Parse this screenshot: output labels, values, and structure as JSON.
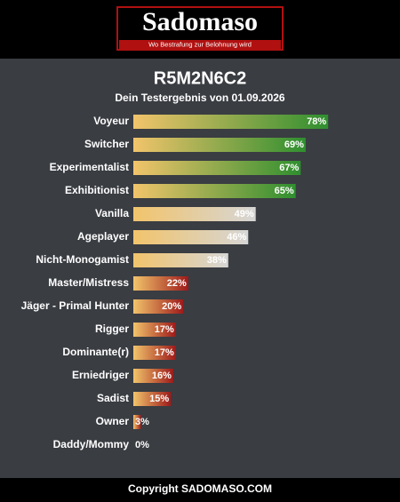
{
  "header": {
    "logo": "Sadomaso",
    "tagline": "Wo Bestrafung zur Belohnung wird"
  },
  "footer": "Copyright SADOMASO.COM",
  "chart_data": {
    "type": "bar",
    "orientation": "horizontal",
    "title": "R5M2N6C2",
    "subtitle": "Dein Testergebnis von 01.09.2026",
    "categories": [
      "Voyeur",
      "Switcher",
      "Experimentalist",
      "Exhibitionist",
      "Vanilla",
      "Ageplayer",
      "Nicht-Monogamist",
      "Master/Mistress",
      "Jäger - Primal Hunter",
      "Rigger",
      "Dominante(r)",
      "Erniedriger",
      "Sadist",
      "Owner",
      "Daddy/Mommy"
    ],
    "values": [
      78,
      69,
      67,
      65,
      49,
      46,
      38,
      22,
      20,
      17,
      17,
      16,
      15,
      3,
      0
    ],
    "value_labels": [
      "78%",
      "69%",
      "67%",
      "65%",
      "49%",
      "46%",
      "38%",
      "22%",
      "20%",
      "17%",
      "17%",
      "16%",
      "15%",
      "3%",
      "0%"
    ],
    "start_color": "#f2c46b",
    "colors": [
      "#2f8f2f",
      "#2f8f2f",
      "#2f8f2f",
      "#2f8f2f",
      "#d6d6d6",
      "#d6d6d6",
      "#d6d6d6",
      "#9e1a1a",
      "#9e1a1a",
      "#9e1a1a",
      "#9e1a1a",
      "#9e1a1a",
      "#9e1a1a",
      "#9e1a1a",
      "#9e1a1a"
    ],
    "xlim": [
      0,
      100
    ]
  }
}
